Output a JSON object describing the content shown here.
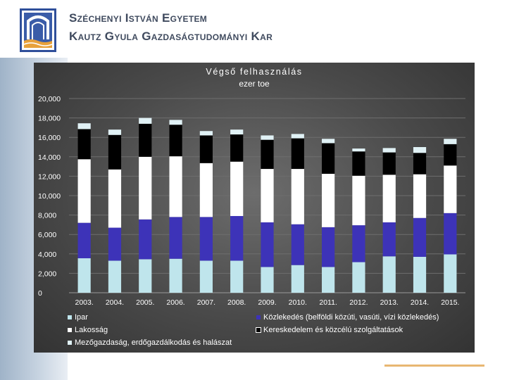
{
  "header": {
    "institution_line1": "Széchenyi István Egyetem",
    "institution_line2": "Kautz Gyula Gazdaságtudományi Kar"
  },
  "chart_data": {
    "type": "bar",
    "stacked": true,
    "title": "Végső felhasználás",
    "subtitle": "ezer toe",
    "xlabel": "",
    "ylabel": "",
    "ylim": [
      0,
      20000
    ],
    "yticks": [
      "0",
      "2,000",
      "4,000",
      "6,000",
      "8,000",
      "10,000",
      "12,000",
      "14,000",
      "16,000",
      "18,000",
      "20,000"
    ],
    "grid": true,
    "legend_position": "bottom",
    "categories": [
      "2003.",
      "2004.",
      "2005.",
      "2006.",
      "2007.",
      "2008.",
      "2009.",
      "2010.",
      "2011.",
      "2012.",
      "2013.",
      "2014.",
      "2015."
    ],
    "series": [
      {
        "name": "Ipar",
        "color": "#bfe5ec",
        "values": [
          3550,
          3300,
          3450,
          3500,
          3300,
          3300,
          2650,
          2850,
          2650,
          3150,
          3750,
          3700,
          3950
        ]
      },
      {
        "name": "Közlekedés (belföldi közúti, vasúti, vízi közlekedés)",
        "color": "#3d33b8",
        "values": [
          3650,
          3400,
          4100,
          4300,
          4500,
          4600,
          4600,
          4200,
          4100,
          3800,
          3500,
          4000,
          4250
        ]
      },
      {
        "name": "Lakosság",
        "color": "#ffffff",
        "values": [
          6550,
          6000,
          6450,
          6250,
          5550,
          5600,
          5500,
          5700,
          5500,
          5100,
          4900,
          4500,
          4900
        ]
      },
      {
        "name": "Kereskedelem és közcélú szolgáltatások",
        "color": "#000000",
        "values": [
          3100,
          3550,
          3400,
          3250,
          2850,
          2800,
          3000,
          3150,
          3150,
          2500,
          2300,
          2200,
          2200
        ]
      },
      {
        "name": "Mezőgazdaság, erdőgazdálkodás és halászat",
        "color": "#e0f1f5",
        "values": [
          600,
          550,
          600,
          500,
          450,
          500,
          450,
          450,
          450,
          300,
          450,
          600,
          550
        ]
      }
    ]
  }
}
